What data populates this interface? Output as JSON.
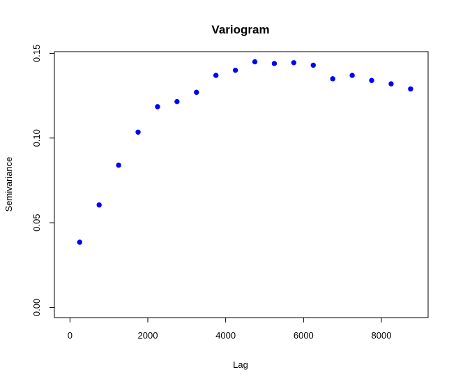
{
  "chart_data": {
    "type": "scatter",
    "title": "Variogram",
    "xlabel": "Lag",
    "ylabel": "Semivariance",
    "xlim": [
      -400,
      9200
    ],
    "ylim": [
      -0.006,
      0.151
    ],
    "xticks": [
      0,
      2000,
      4000,
      6000,
      8000
    ],
    "xtick_labels": [
      "0",
      "2000",
      "4000",
      "6000",
      "8000"
    ],
    "yticks": [
      0.0,
      0.05,
      0.1,
      0.15
    ],
    "ytick_labels": [
      "0.00",
      "0.05",
      "0.10",
      "0.15"
    ],
    "grid": false,
    "legend": "none",
    "point_color": "#0000FF",
    "series": [
      {
        "x": [
          250,
          750,
          1250,
          1750,
          2250,
          2750,
          3250,
          3750,
          4250,
          4750,
          5250,
          5750,
          6250,
          6750,
          7250,
          7750,
          8250,
          8750
        ],
        "y": [
          0.0385,
          0.0605,
          0.084,
          0.1035,
          0.1185,
          0.1215,
          0.127,
          0.137,
          0.14,
          0.145,
          0.144,
          0.1445,
          0.143,
          0.135,
          0.137,
          0.134,
          0.132,
          0.129
        ]
      }
    ]
  }
}
